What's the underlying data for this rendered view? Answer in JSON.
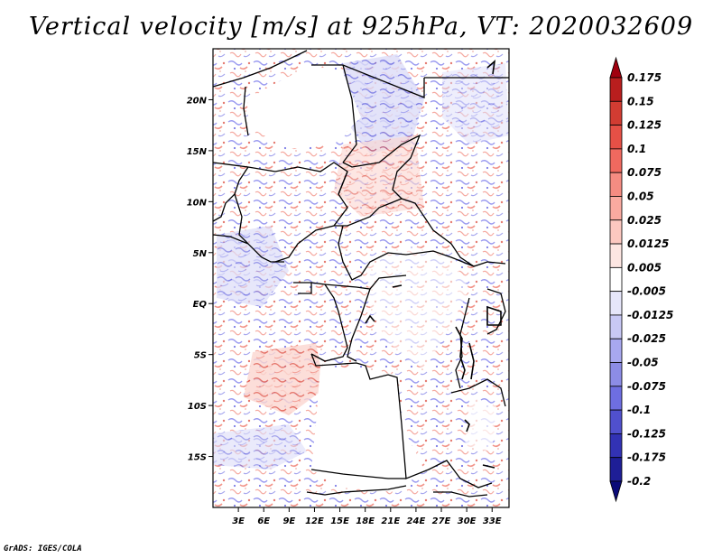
{
  "map": {
    "title": "Vertical velocity [m/s] at 925hPa, VT: 2020032609",
    "footer": "GrADS: IGES/COLA",
    "lat_ticks": [
      "20N",
      "15N",
      "10N",
      "5N",
      "EQ",
      "5S",
      "10S",
      "15S"
    ],
    "lat_values": [
      20,
      15,
      10,
      5,
      0,
      -5,
      -10,
      -15
    ],
    "lon_ticks": [
      "3E",
      "6E",
      "9E",
      "12E",
      "15E",
      "18E",
      "21E",
      "24E",
      "27E",
      "30E",
      "33E"
    ],
    "lon_values": [
      3,
      6,
      9,
      12,
      15,
      18,
      21,
      24,
      27,
      30,
      33
    ],
    "extent": {
      "lon": [
        0,
        35
      ],
      "lat": [
        -20,
        25
      ]
    }
  },
  "colorbar": {
    "labels": [
      "0.175",
      "0.15",
      "0.125",
      "0.1",
      "0.075",
      "0.05",
      "0.025",
      "0.0125",
      "0.005",
      "-0.005",
      "-0.0125",
      "-0.025",
      "-0.05",
      "-0.075",
      "-0.1",
      "-0.125",
      "-0.175",
      "-0.2"
    ],
    "colors": [
      "#a0000f",
      "#b91e1e",
      "#d23c32",
      "#e65046",
      "#f0695f",
      "#f58c82",
      "#faaaa0",
      "#fcc8c0",
      "#fde6e2",
      "#ffffff",
      "#e6e6fa",
      "#c8c8f5",
      "#a8a8ef",
      "#8c8ce6",
      "#6e6ee1",
      "#5050cd",
      "#3232b4",
      "#1e1e96",
      "#0a0a78"
    ]
  }
}
